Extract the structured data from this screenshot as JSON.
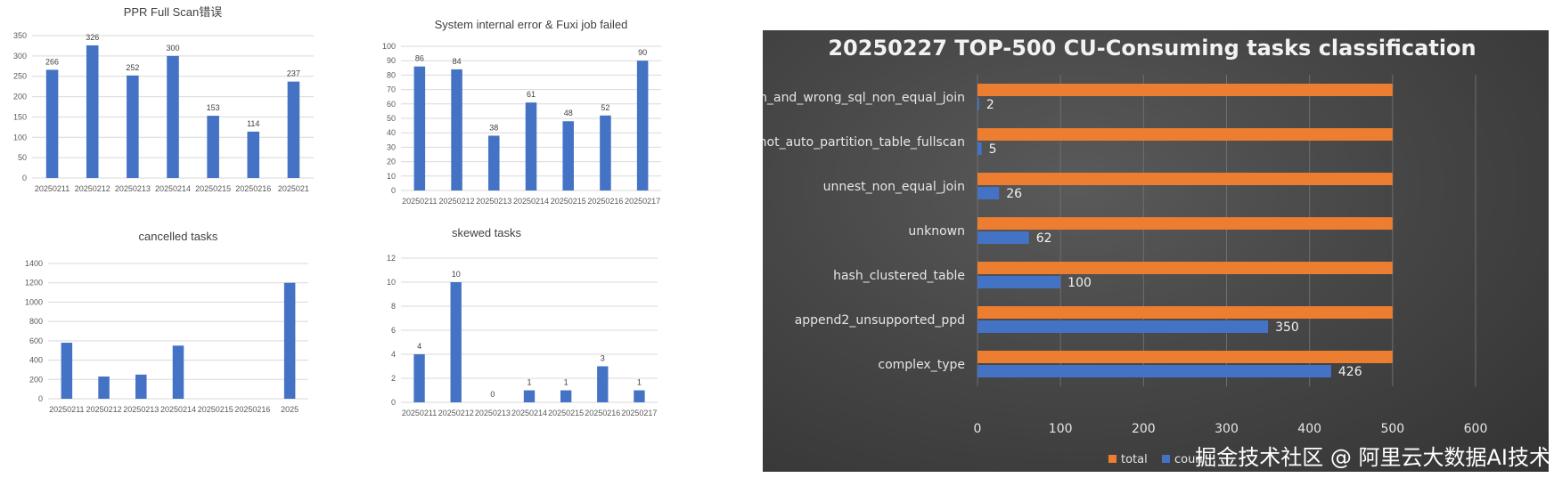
{
  "chart_data": [
    {
      "id": "ppr",
      "type": "bar",
      "title": "PPR Full Scan错误",
      "categories": [
        "20250211",
        "20250212",
        "20250213",
        "20250214",
        "20250215",
        "20250216",
        "2025021"
      ],
      "values": [
        266,
        326,
        252,
        300,
        153,
        114,
        237
      ],
      "ylim": [
        0,
        350
      ],
      "yticks": [
        0,
        50,
        100,
        150,
        200,
        250,
        300,
        350
      ],
      "data_labels": true,
      "grid": true,
      "bar_color": "#4472C4"
    },
    {
      "id": "sys",
      "type": "bar",
      "title": "System internal error & Fuxi job failed",
      "categories": [
        "20250211",
        "20250212",
        "20250213",
        "20250214",
        "20250215",
        "20250216",
        "20250217"
      ],
      "values": [
        86,
        84,
        38,
        61,
        48,
        52,
        90
      ],
      "ylim": [
        0,
        100
      ],
      "yticks": [
        0,
        10,
        20,
        30,
        40,
        50,
        60,
        70,
        80,
        90,
        100
      ],
      "data_labels": true,
      "grid": true,
      "bar_color": "#4472C4"
    },
    {
      "id": "cancel",
      "type": "bar",
      "title": "cancelled tasks",
      "categories": [
        "20250211",
        "20250212",
        "20250213",
        "20250214",
        "20250215",
        "20250216",
        "2025"
      ],
      "values": [
        580,
        230,
        250,
        550,
        0,
        0,
        1200
      ],
      "ylim": [
        0,
        1400
      ],
      "yticks": [
        0,
        200,
        400,
        600,
        800,
        1000,
        1200,
        1400
      ],
      "data_labels": false,
      "grid": true,
      "bar_color": "#4472C4"
    },
    {
      "id": "skew",
      "type": "bar",
      "title": "skewed tasks",
      "categories": [
        "20250211",
        "20250212",
        "20250213",
        "20250214",
        "20250215",
        "20250216",
        "20250217"
      ],
      "values": [
        4,
        10,
        0,
        1,
        1,
        3,
        1
      ],
      "ylim": [
        0,
        12
      ],
      "yticks": [
        0,
        2,
        4,
        6,
        8,
        10,
        12
      ],
      "data_labels": true,
      "grid": true,
      "bar_color": "#4472C4"
    },
    {
      "id": "cu",
      "type": "bar",
      "orientation": "horizontal",
      "title": "20250227 TOP-500 CU-Consuming tasks classification",
      "categories": [
        "complex_type",
        "append2_unsupported_ppd",
        "hash_clustered_table",
        "unknown",
        "unnest_non_equal_join",
        "not_auto_partition_table_fullscan",
        "oin_and_wrong_sql_non_equal_join"
      ],
      "series": [
        {
          "name": "total",
          "color": "#ED7D31",
          "values": [
            500,
            500,
            500,
            500,
            500,
            500,
            500
          ]
        },
        {
          "name": "coun",
          "color": "#4472C4",
          "values": [
            426,
            350,
            100,
            62,
            26,
            5,
            2
          ]
        }
      ],
      "xlim": [
        0,
        600
      ],
      "xticks": [
        0,
        100,
        200,
        300,
        400,
        500,
        600
      ],
      "data_labels_series": "coun",
      "legend": "bottom-right",
      "grid": true
    }
  ],
  "watermark": "掘金技术社区 @ 阿里云大数据AI技术"
}
